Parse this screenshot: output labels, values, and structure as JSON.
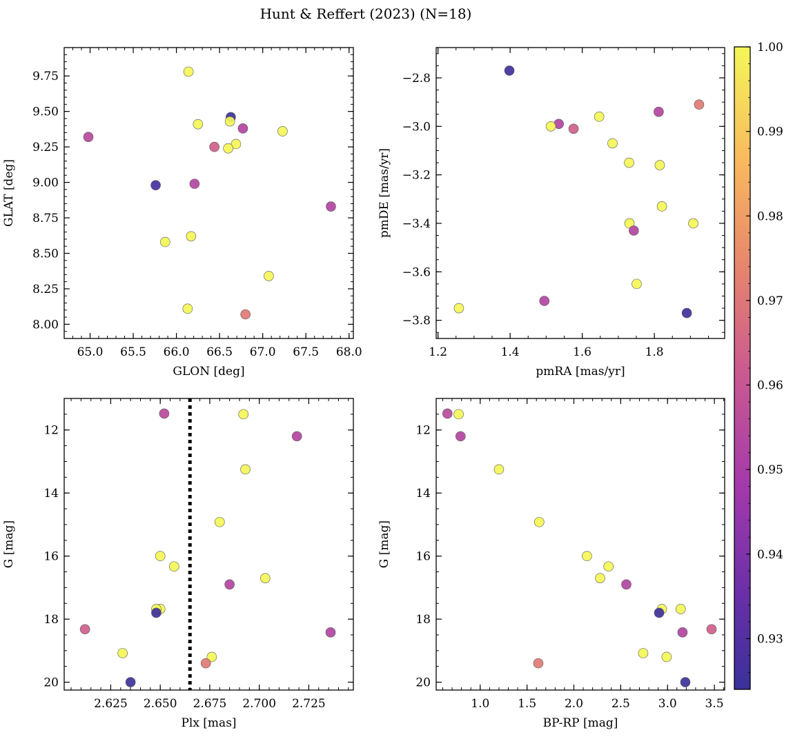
{
  "figure_title": "Hunt & Reffert (2023) (N=18)",
  "colors": {
    "colormap": "plasma",
    "marker_edge": "#555555",
    "guide_line": "#000000"
  },
  "chart_data": [
    {
      "id": "glon-glat",
      "type": "scatter",
      "xlabel": "GLON [deg]",
      "ylabel": "GLAT [deg]",
      "xlim": [
        64.7,
        68.05
      ],
      "ylim": [
        7.9,
        9.95
      ],
      "y_inverted": false,
      "xticks": [
        65.0,
        65.5,
        66.0,
        66.5,
        67.0,
        67.5,
        68.0
      ],
      "xtick_labels": [
        "65.0",
        "65.5",
        "66.0",
        "66.5",
        "67.0",
        "67.5",
        "68.0"
      ],
      "yticks": [
        8.0,
        8.25,
        8.5,
        8.75,
        9.0,
        9.25,
        9.5,
        9.75
      ],
      "ytick_labels": [
        "8.00",
        "8.25",
        "8.50",
        "8.75",
        "9.00",
        "9.25",
        "9.50",
        "9.75"
      ],
      "x_minor": 0.1,
      "y_minor": 0.05,
      "points": [
        {
          "x": 66.14,
          "y": 9.78,
          "c": 1.0
        },
        {
          "x": 66.63,
          "y": 9.46,
          "c": 0.925
        },
        {
          "x": 66.62,
          "y": 9.43,
          "c": 1.0
        },
        {
          "x": 66.25,
          "y": 9.41,
          "c": 1.0
        },
        {
          "x": 66.77,
          "y": 9.38,
          "c": 0.953
        },
        {
          "x": 67.23,
          "y": 9.36,
          "c": 1.0
        },
        {
          "x": 64.98,
          "y": 9.32,
          "c": 0.955
        },
        {
          "x": 66.69,
          "y": 9.27,
          "c": 1.0
        },
        {
          "x": 66.44,
          "y": 9.25,
          "c": 0.963
        },
        {
          "x": 66.6,
          "y": 9.24,
          "c": 1.0
        },
        {
          "x": 65.76,
          "y": 8.98,
          "c": 0.927
        },
        {
          "x": 66.21,
          "y": 8.99,
          "c": 0.953
        },
        {
          "x": 67.79,
          "y": 8.83,
          "c": 0.953
        },
        {
          "x": 66.17,
          "y": 8.62,
          "c": 1.0
        },
        {
          "x": 65.87,
          "y": 8.58,
          "c": 1.0
        },
        {
          "x": 67.07,
          "y": 8.34,
          "c": 1.0
        },
        {
          "x": 66.13,
          "y": 8.11,
          "c": 1.0
        },
        {
          "x": 66.8,
          "y": 8.07,
          "c": 0.971
        }
      ]
    },
    {
      "id": "pmra-pmde",
      "type": "scatter",
      "xlabel": "pmRA [mas/yr]",
      "ylabel": "pmDE [mas/yr]",
      "xlim": [
        1.195,
        1.995
      ],
      "ylim": [
        -3.875,
        -2.675
      ],
      "y_inverted": false,
      "xticks": [
        1.2,
        1.4,
        1.6,
        1.8
      ],
      "xtick_labels": [
        "1.2",
        "1.4",
        "1.6",
        "1.8"
      ],
      "yticks": [
        -3.8,
        -3.6,
        -3.4,
        -3.2,
        -3.0,
        -2.8
      ],
      "ytick_labels": [
        "−3.8",
        "−3.6",
        "−3.4",
        "−3.2",
        "−3.0",
        "−2.8"
      ],
      "x_minor": 0.05,
      "y_minor": 0.05,
      "points": [
        {
          "x": 1.398,
          "y": -2.77,
          "c": 0.925
        },
        {
          "x": 1.924,
          "y": -2.91,
          "c": 0.971
        },
        {
          "x": 1.812,
          "y": -2.94,
          "c": 0.953
        },
        {
          "x": 1.647,
          "y": -2.96,
          "c": 1.0
        },
        {
          "x": 1.535,
          "y": -2.99,
          "c": 0.953
        },
        {
          "x": 1.513,
          "y": -3.0,
          "c": 1.0
        },
        {
          "x": 1.576,
          "y": -3.01,
          "c": 0.963
        },
        {
          "x": 1.684,
          "y": -3.07,
          "c": 1.0
        },
        {
          "x": 1.73,
          "y": -3.15,
          "c": 1.0
        },
        {
          "x": 1.815,
          "y": -3.16,
          "c": 1.0
        },
        {
          "x": 1.821,
          "y": -3.33,
          "c": 1.0
        },
        {
          "x": 1.731,
          "y": -3.4,
          "c": 1.0
        },
        {
          "x": 1.908,
          "y": -3.4,
          "c": 1.0
        },
        {
          "x": 1.743,
          "y": -3.43,
          "c": 0.953
        },
        {
          "x": 1.751,
          "y": -3.65,
          "c": 1.0
        },
        {
          "x": 1.495,
          "y": -3.72,
          "c": 0.953
        },
        {
          "x": 1.258,
          "y": -3.75,
          "c": 1.0
        },
        {
          "x": 1.89,
          "y": -3.77,
          "c": 0.925
        }
      ]
    },
    {
      "id": "plx-g",
      "type": "scatter",
      "xlabel": "Plx [mas]",
      "ylabel": "G [mag]",
      "xlim": [
        2.6015,
        2.7475
      ],
      "ylim": [
        20.25,
        11.0
      ],
      "y_inverted": true,
      "vline_x": 2.665,
      "xticks": [
        2.625,
        2.65,
        2.675,
        2.7,
        2.725
      ],
      "xtick_labels": [
        "2.625",
        "2.650",
        "2.675",
        "2.700",
        "2.725"
      ],
      "yticks": [
        12,
        14,
        16,
        18,
        20
      ],
      "ytick_labels": [
        "12",
        "14",
        "16",
        "18",
        "20"
      ],
      "x_minor": 0.005,
      "y_minor": 0.5,
      "points": [
        {
          "x": 2.652,
          "y": 11.48,
          "c": 0.955
        },
        {
          "x": 2.692,
          "y": 11.5,
          "c": 1.0
        },
        {
          "x": 2.719,
          "y": 12.2,
          "c": 0.953
        },
        {
          "x": 2.693,
          "y": 13.25,
          "c": 1.0
        },
        {
          "x": 2.68,
          "y": 14.92,
          "c": 1.0
        },
        {
          "x": 2.65,
          "y": 16.0,
          "c": 1.0
        },
        {
          "x": 2.657,
          "y": 16.33,
          "c": 1.0
        },
        {
          "x": 2.703,
          "y": 16.7,
          "c": 1.0
        },
        {
          "x": 2.685,
          "y": 16.9,
          "c": 0.953
        },
        {
          "x": 2.65,
          "y": 17.68,
          "c": 1.0
        },
        {
          "x": 2.648,
          "y": 17.68,
          "c": 1.0
        },
        {
          "x": 2.648,
          "y": 17.8,
          "c": 0.925
        },
        {
          "x": 2.612,
          "y": 18.32,
          "c": 0.963
        },
        {
          "x": 2.736,
          "y": 18.42,
          "c": 0.953
        },
        {
          "x": 2.631,
          "y": 19.08,
          "c": 1.0
        },
        {
          "x": 2.676,
          "y": 19.2,
          "c": 1.0
        },
        {
          "x": 2.673,
          "y": 19.4,
          "c": 0.971
        },
        {
          "x": 2.635,
          "y": 20.0,
          "c": 0.925
        }
      ]
    },
    {
      "id": "bprp-g",
      "type": "scatter",
      "xlabel": "BP-RP [mag]",
      "ylabel": "G [mag]",
      "xlim": [
        0.53,
        3.61
      ],
      "ylim": [
        20.25,
        11.0
      ],
      "y_inverted": true,
      "xticks": [
        1.0,
        1.5,
        2.0,
        2.5,
        3.0,
        3.5
      ],
      "xtick_labels": [
        "1.0",
        "1.5",
        "2.0",
        "2.5",
        "3.0",
        "3.5"
      ],
      "yticks": [
        12,
        14,
        16,
        18,
        20
      ],
      "ytick_labels": [
        "12",
        "14",
        "16",
        "18",
        "20"
      ],
      "x_minor": 0.1,
      "y_minor": 0.5,
      "points": [
        {
          "x": 0.65,
          "y": 11.48,
          "c": 0.955
        },
        {
          "x": 0.77,
          "y": 11.5,
          "c": 1.0
        },
        {
          "x": 0.79,
          "y": 12.2,
          "c": 0.953
        },
        {
          "x": 1.2,
          "y": 13.25,
          "c": 1.0
        },
        {
          "x": 1.63,
          "y": 14.92,
          "c": 1.0
        },
        {
          "x": 2.14,
          "y": 16.0,
          "c": 1.0
        },
        {
          "x": 2.37,
          "y": 16.33,
          "c": 1.0
        },
        {
          "x": 2.28,
          "y": 16.7,
          "c": 1.0
        },
        {
          "x": 2.56,
          "y": 16.9,
          "c": 0.953
        },
        {
          "x": 2.94,
          "y": 17.68,
          "c": 1.0
        },
        {
          "x": 3.14,
          "y": 17.68,
          "c": 1.0
        },
        {
          "x": 2.91,
          "y": 17.8,
          "c": 0.925
        },
        {
          "x": 3.47,
          "y": 18.32,
          "c": 0.963
        },
        {
          "x": 3.16,
          "y": 18.42,
          "c": 0.953
        },
        {
          "x": 2.74,
          "y": 19.08,
          "c": 1.0
        },
        {
          "x": 2.99,
          "y": 19.2,
          "c": 1.0
        },
        {
          "x": 1.62,
          "y": 19.4,
          "c": 0.971
        },
        {
          "x": 3.19,
          "y": 20.0,
          "c": 0.925
        }
      ]
    }
  ],
  "colorbar": {
    "vmin": 0.924,
    "vmax": 1.0,
    "ticks": [
      0.93,
      0.94,
      0.95,
      0.96,
      0.97,
      0.98,
      0.99,
      1.0
    ],
    "tick_labels": [
      "0.93",
      "0.94",
      "0.95",
      "0.96",
      "0.97",
      "0.98",
      "0.99",
      "1.00"
    ]
  }
}
